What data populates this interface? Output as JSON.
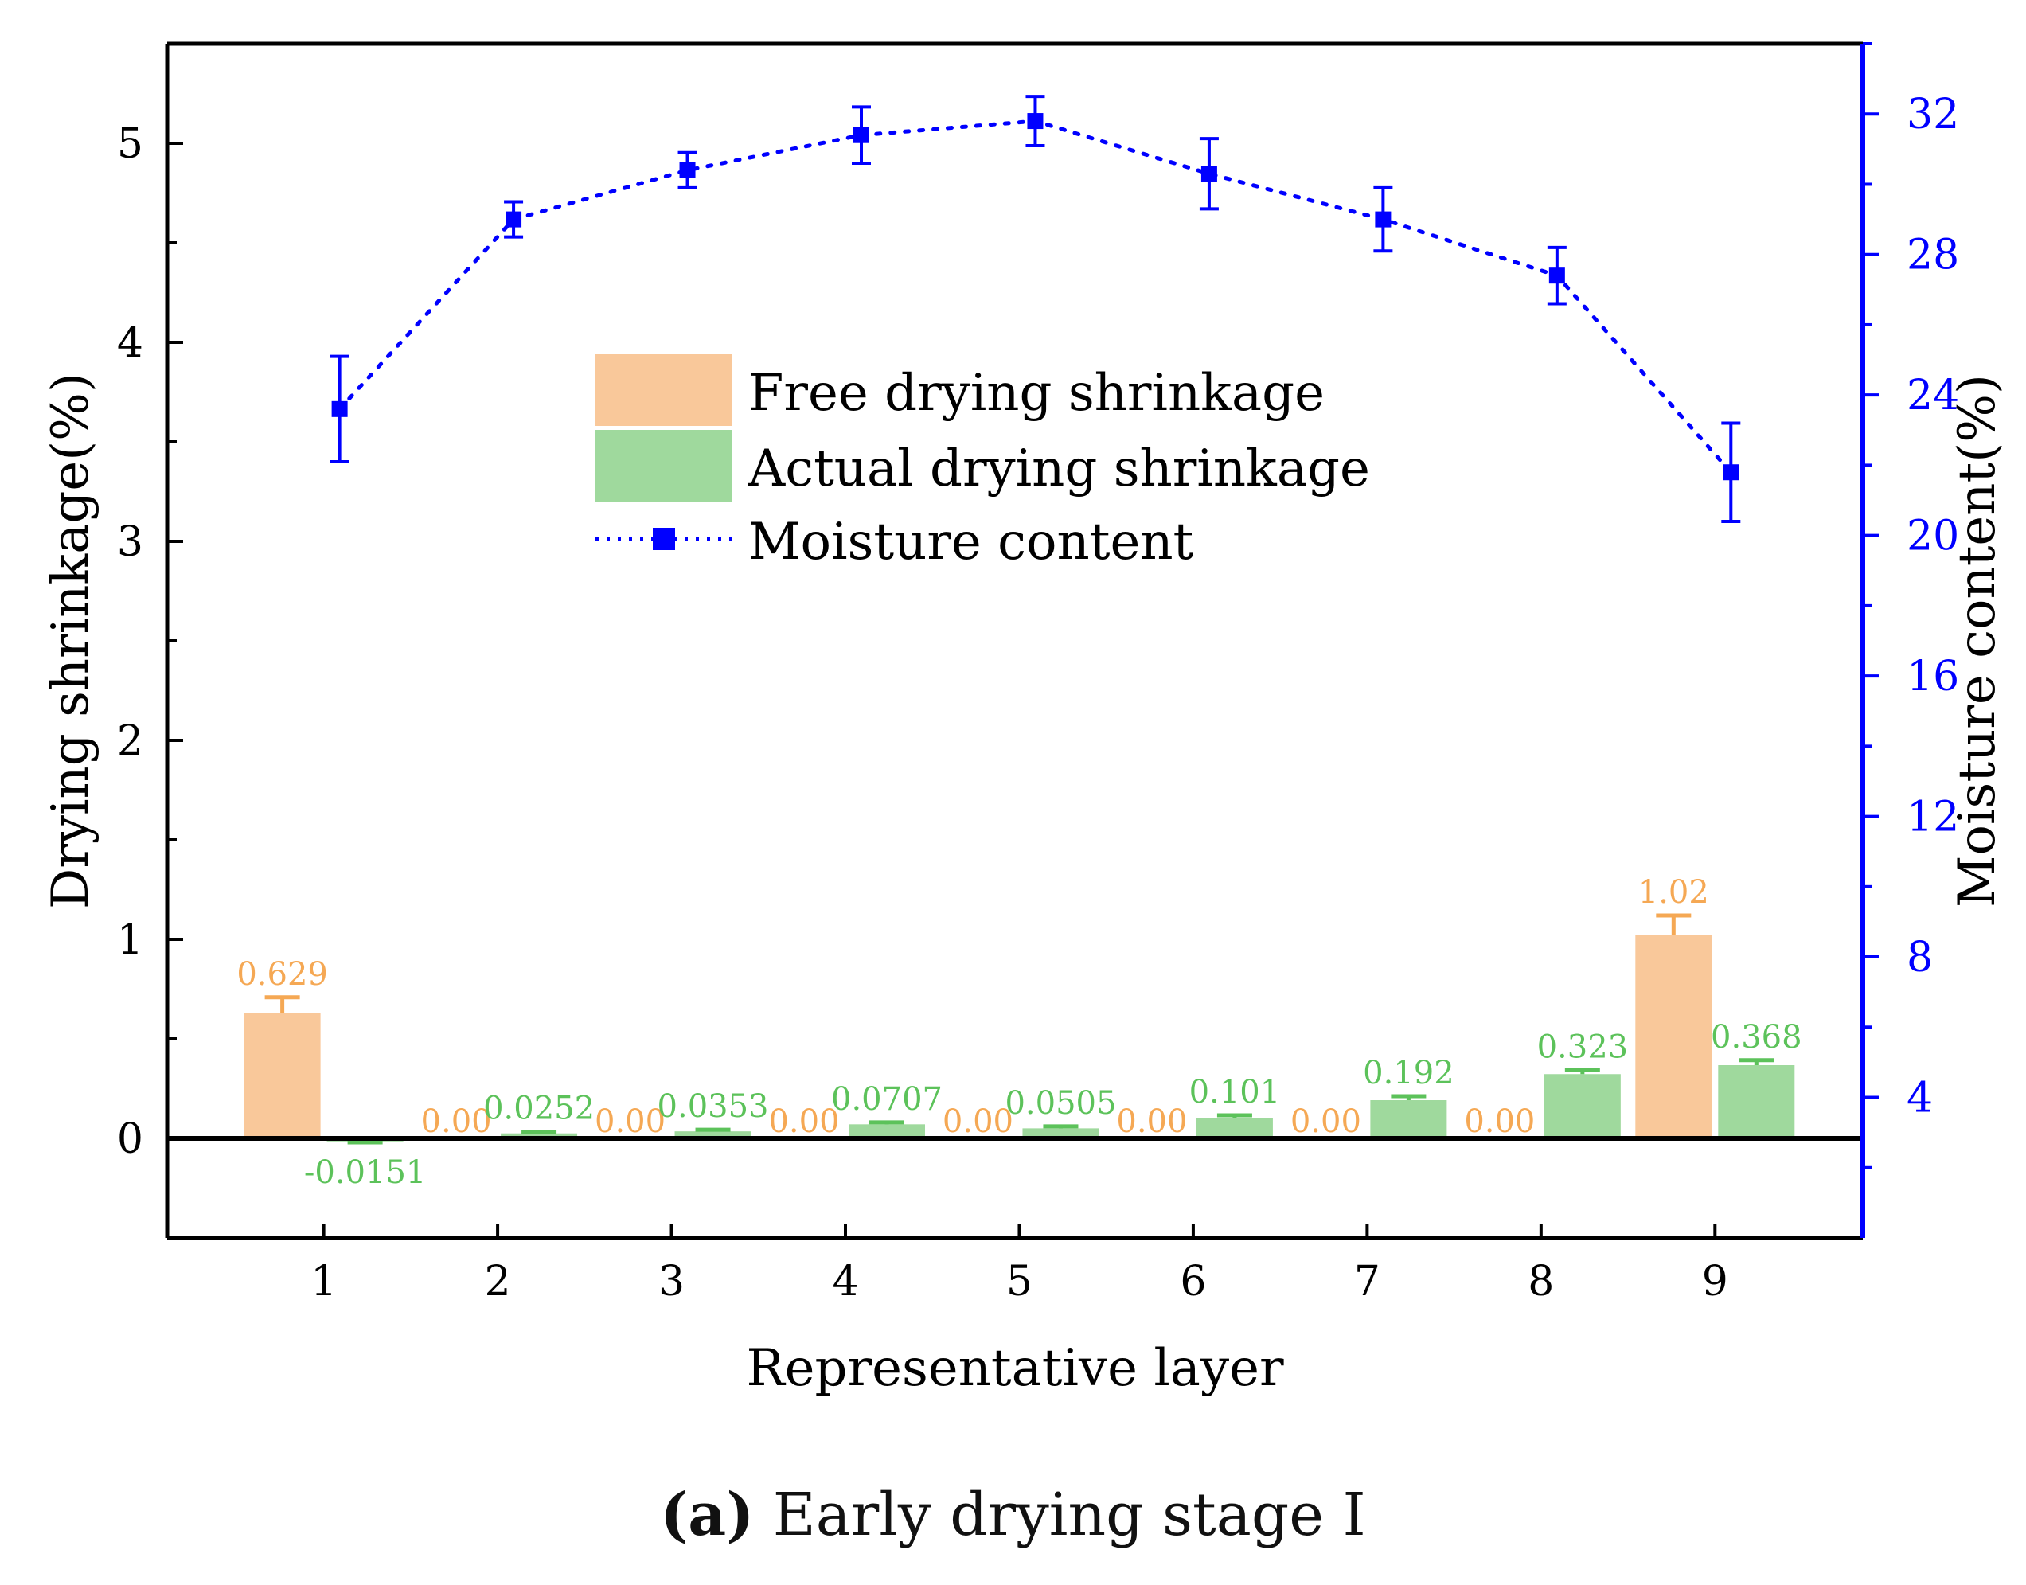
{
  "chart_data": {
    "type": "bar",
    "categories": [
      "1",
      "2",
      "3",
      "4",
      "5",
      "6",
      "7",
      "8",
      "9"
    ],
    "xlabel": "Representative layer",
    "ylabel": "Drying shrinkage(%)",
    "ylabel_right": "Moisture content(%)",
    "ylim": [
      -0.5,
      5.5
    ],
    "yticks": [
      0,
      1,
      2,
      3,
      4,
      5
    ],
    "ylim_right": [
      0,
      34
    ],
    "yticks_right": [
      4,
      8,
      12,
      16,
      20,
      24,
      28,
      32
    ],
    "legend_position": "upper-center",
    "series": [
      {
        "name": "Free drying shrinkage",
        "kind": "bar",
        "color": "#F9C89A",
        "label_color": "#F5A854",
        "values": [
          0.629,
          0,
          0,
          0,
          0,
          0,
          0,
          0,
          1.02
        ],
        "errors": [
          0.08,
          0,
          0,
          0,
          0,
          0,
          0,
          0,
          0.1
        ],
        "labels": [
          "0.629",
          "0.00",
          "0.00",
          "0.00",
          "0.00",
          "0.00",
          "0.00",
          "0.00",
          "1.02"
        ]
      },
      {
        "name": "Actual drying shrinkage",
        "kind": "bar",
        "color": "#9FD99D",
        "label_color": "#5CC25A",
        "values": [
          -0.0151,
          0.0252,
          0.0353,
          0.0707,
          0.0505,
          0.101,
          0.192,
          0.323,
          0.368
        ],
        "errors": [
          0.005,
          0.008,
          0.008,
          0.01,
          0.01,
          0.015,
          0.02,
          0.02,
          0.025
        ],
        "labels": [
          "-0.0151",
          "0.0252",
          "0.0353",
          "0.0707",
          "0.0505",
          "0.101",
          "0.192",
          "0.323",
          "0.368"
        ]
      },
      {
        "name": "Moisture content",
        "kind": "line",
        "axis": "right",
        "color": "#0000FF",
        "values": [
          23.6,
          29.0,
          30.4,
          31.4,
          31.8,
          30.3,
          29.0,
          27.4,
          21.8
        ],
        "errors": [
          1.5,
          0.5,
          0.5,
          0.8,
          0.7,
          1.0,
          0.9,
          0.8,
          1.4
        ]
      }
    ]
  },
  "caption": {
    "label": "(a)",
    "text": " Early drying stage I"
  }
}
